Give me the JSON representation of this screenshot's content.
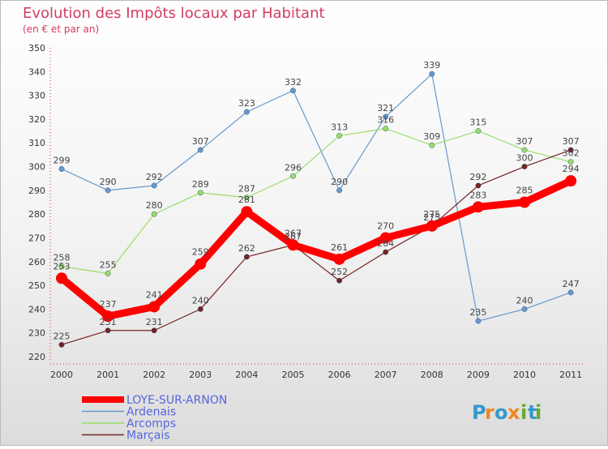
{
  "chart_data": {
    "type": "line",
    "title": "Evolution des Impôts locaux par Habitant",
    "subtitle": "(en € et par an)",
    "categories": [
      "2000",
      "2001",
      "2002",
      "2003",
      "2004",
      "2005",
      "2006",
      "2007",
      "2008",
      "2009",
      "2010",
      "2011"
    ],
    "ylim": [
      220,
      350
    ],
    "yticks": [
      220,
      230,
      240,
      250,
      260,
      270,
      280,
      290,
      300,
      310,
      320,
      330,
      340,
      350
    ],
    "grid": false,
    "legend_position": "bottom-left",
    "series": [
      {
        "name": "LOYE-SUR-ARNON",
        "color": "#ff0000",
        "values": [
          253,
          237,
          241,
          259,
          281,
          267,
          261,
          270,
          275,
          283,
          285,
          294
        ]
      },
      {
        "name": "Ardenais",
        "color": "#6699cc",
        "values": [
          299,
          290,
          292,
          307,
          323,
          332,
          290,
          321,
          339,
          235,
          240,
          247
        ]
      },
      {
        "name": "Arcomps",
        "color": "#99dd66",
        "values": [
          258,
          255,
          280,
          289,
          287,
          296,
          313,
          316,
          309,
          315,
          307,
          302
        ]
      },
      {
        "name": "Marçais",
        "color": "#772222",
        "values": [
          225,
          231,
          231,
          240,
          262,
          267,
          252,
          264,
          275,
          292,
          300,
          307
        ]
      }
    ]
  },
  "brand": {
    "logo_text": "Proxiti",
    "letters": [
      "P",
      "r",
      "o",
      "x",
      "i",
      "t",
      "i"
    ]
  }
}
